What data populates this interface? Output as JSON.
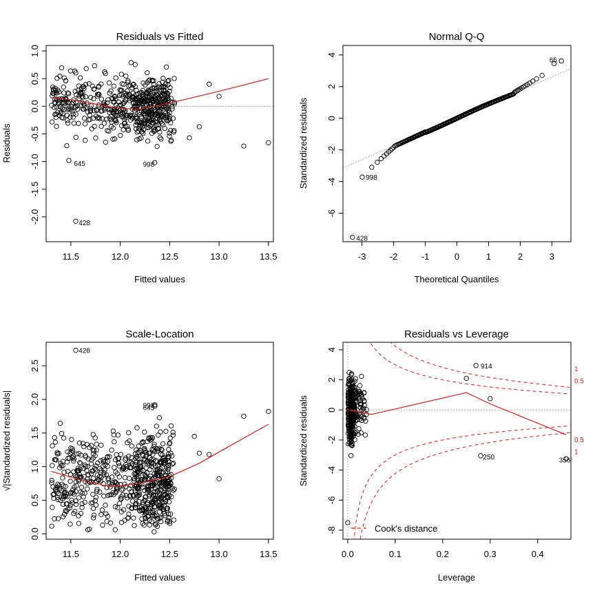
{
  "panels": {
    "rvf": {
      "title": "Residuals vs Fitted",
      "xlabel": "Fitted values",
      "ylabel": "Residuals",
      "x_ticks": [
        "11.5",
        "12.0",
        "12.5",
        "13.0",
        "13.5"
      ],
      "y_ticks": [
        "-2.0",
        "-1.5",
        "-1.0",
        "-0.5",
        "0.0",
        "0.5",
        "1.0"
      ],
      "point_labels": [
        {
          "id": "rvf-label-645",
          "text": "645",
          "x": 11.53,
          "y": -1.03
        },
        {
          "id": "rvf-label-998",
          "text": "998",
          "x": 12.23,
          "y": -1.04
        },
        {
          "id": "rvf-label-428",
          "text": "428",
          "x": 11.58,
          "y": -2.1
        }
      ]
    },
    "qq": {
      "title": "Normal Q-Q",
      "xlabel": "Theoretical Quantiles",
      "ylabel": "Standardized residuals",
      "x_ticks": [
        "-3",
        "-2",
        "-1",
        "0",
        "1",
        "2",
        "3"
      ],
      "y_ticks": [
        "-6",
        "-4",
        "-2",
        "0",
        "2",
        "4"
      ],
      "point_labels": [
        {
          "id": "qq-label-66",
          "text": "66",
          "x": 2.92,
          "y": 3.7
        },
        {
          "id": "qq-label-998",
          "text": "998",
          "x": -2.88,
          "y": -3.7
        },
        {
          "id": "qq-label-428",
          "text": "428",
          "x": -3.18,
          "y": -7.55
        }
      ]
    },
    "sl": {
      "title": "Scale-Location",
      "xlabel": "Fitted values",
      "ylabel": "√|Standardized residuals|",
      "x_ticks": [
        "11.5",
        "12.0",
        "12.5",
        "13.0",
        "13.5"
      ],
      "y_ticks": [
        "0.0",
        "0.5",
        "1.0",
        "1.5",
        "2.0",
        "2.5"
      ],
      "point_labels": [
        {
          "id": "sl-label-428",
          "text": "428",
          "x": 11.58,
          "y": 2.73
        },
        {
          "id": "sl-label-998",
          "text": "998",
          "x": 12.23,
          "y": 1.92
        },
        {
          "id": "sl-label-645",
          "text": "645",
          "x": 12.23,
          "y": 1.88
        }
      ]
    },
    "rvl": {
      "title": "Residuals vs Leverage",
      "xlabel": "Leverage",
      "ylabel": "Standardized residuals",
      "x_ticks": [
        "0.0",
        "0.1",
        "0.2",
        "0.3",
        "0.4"
      ],
      "y_ticks": [
        "-8",
        "-6",
        "-4",
        "-2",
        "0",
        "2",
        "4"
      ],
      "point_labels": [
        {
          "id": "rvl-label-914",
          "text": "914",
          "x": 0.28,
          "y": 2.95
        },
        {
          "id": "rvl-label-250",
          "text": "250",
          "x": 0.285,
          "y": -3.1
        },
        {
          "id": "rvl-label-356",
          "text": "356",
          "x": 0.445,
          "y": -3.3
        }
      ],
      "cooks_legend": "Cook's distance",
      "contour_labels": [
        {
          "id": "rvl-contour-label-1-upper",
          "text": "1",
          "y": 2.75
        },
        {
          "id": "rvl-contour-label-05-upper",
          "text": "0.5",
          "y": 1.95
        },
        {
          "id": "rvl-contour-label-05-lower",
          "text": "0.5",
          "y": -1.95
        },
        {
          "id": "rvl-contour-label-1-lower",
          "text": "1",
          "y": -2.75
        }
      ]
    }
  },
  "chart_data": [
    {
      "type": "scatter",
      "title": "Residuals vs Fitted",
      "xlabel": "Fitted values",
      "ylabel": "Residuals",
      "xlim": [
        11.25,
        13.55
      ],
      "ylim": [
        -2.45,
        1.1
      ],
      "grid": false,
      "reference_line": 0,
      "points_note": "cloud of ~1000 residuals between fitted 11.3 and 12.55",
      "outliers": [
        {
          "x": 11.55,
          "y": -2.08,
          "label": "428"
        },
        {
          "x": 11.48,
          "y": -0.98,
          "label": "645"
        },
        {
          "x": 12.35,
          "y": -1.02,
          "label": "998"
        },
        {
          "x": 12.9,
          "y": 0.4
        },
        {
          "x": 13.0,
          "y": 0.18
        },
        {
          "x": 13.25,
          "y": -0.72
        },
        {
          "x": 13.5,
          "y": -0.66
        },
        {
          "x": 12.7,
          "y": -0.57
        },
        {
          "x": 12.8,
          "y": -0.37
        }
      ],
      "smooth": {
        "x": [
          11.3,
          11.5,
          11.75,
          12.0,
          12.2,
          12.4,
          12.6,
          13.0,
          13.5
        ],
        "y": [
          0.15,
          0.12,
          0.04,
          -0.04,
          -0.05,
          0.02,
          0.1,
          0.27,
          0.5
        ]
      }
    },
    {
      "type": "scatter",
      "title": "Normal Q-Q",
      "xlabel": "Theoretical Quantiles",
      "ylabel": "Standardized residuals",
      "xlim": [
        -3.6,
        3.6
      ],
      "ylim": [
        -7.8,
        4.6
      ],
      "grid": false,
      "reference_line": {
        "intercept": 0,
        "slope": 0.87
      },
      "outliers": [
        {
          "x": -3.3,
          "y": -7.52,
          "label": "428"
        },
        {
          "x": -2.99,
          "y": -3.72,
          "label": "998"
        },
        {
          "x": 3.3,
          "y": 3.62,
          "label": "66"
        },
        {
          "x": 3.07,
          "y": 3.45
        }
      ]
    },
    {
      "type": "scatter",
      "title": "Scale-Location",
      "xlabel": "Fitted values",
      "ylabel": "√|Standardized residuals|",
      "xlim": [
        11.25,
        13.55
      ],
      "ylim": [
        -0.08,
        2.85
      ],
      "grid": false,
      "outliers": [
        {
          "x": 11.55,
          "y": 2.73,
          "label": "428"
        },
        {
          "x": 12.35,
          "y": 1.92,
          "label": "998"
        },
        {
          "x": 12.35,
          "y": 1.9,
          "label": "645"
        },
        {
          "x": 12.75,
          "y": 1.45
        },
        {
          "x": 13.25,
          "y": 1.75
        },
        {
          "x": 13.5,
          "y": 1.82
        },
        {
          "x": 12.8,
          "y": 1.2
        },
        {
          "x": 12.9,
          "y": 1.18
        },
        {
          "x": 13.0,
          "y": 0.82
        }
      ],
      "smooth": {
        "x": [
          11.3,
          11.6,
          11.9,
          12.2,
          12.5,
          12.8,
          13.1,
          13.5
        ],
        "y": [
          0.93,
          0.8,
          0.7,
          0.75,
          0.85,
          1.05,
          1.3,
          1.63
        ]
      }
    },
    {
      "type": "scatter",
      "title": "Residuals vs Leverage",
      "xlabel": "Leverage",
      "ylabel": "Standardized residuals",
      "xlim": [
        -0.01,
        0.47
      ],
      "ylim": [
        -8.6,
        4.5
      ],
      "grid": false,
      "outliers": [
        {
          "x": 0.27,
          "y": 2.95,
          "label": "914"
        },
        {
          "x": 0.28,
          "y": -3.05,
          "label": "250"
        },
        {
          "x": 0.46,
          "y": -3.25,
          "label": "356"
        },
        {
          "x": 0.25,
          "y": 2.1
        },
        {
          "x": 0.3,
          "y": 0.75
        },
        {
          "x": 0.0,
          "y": -7.5
        }
      ],
      "smooth": {
        "x": [
          0.0,
          0.05,
          0.25,
          0.3,
          0.46
        ],
        "y": [
          0.0,
          -0.3,
          1.15,
          0.4,
          -1.65
        ]
      },
      "cooks_distance_levels": [
        0.5,
        1
      ],
      "legend": "Cook's distance"
    }
  ],
  "colors": {
    "points": "#000000",
    "smooth": "#e31a1c",
    "cooks": "#e31a1c",
    "refline": "#999999"
  }
}
